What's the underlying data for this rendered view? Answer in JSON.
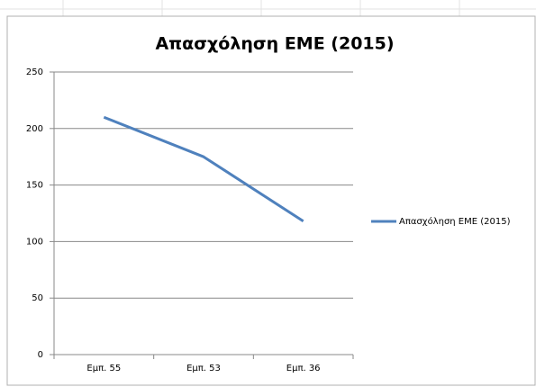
{
  "chart_data": {
    "type": "line",
    "title": "Απασχόληση ΕΜΕ (2015)",
    "categories": [
      "Εμπ. 55",
      "Εμπ. 53",
      "Εμπ. 36"
    ],
    "series": [
      {
        "name": "Απασχόληση ΕΜΕ (2015)",
        "color": "#4f81bd",
        "values": [
          210,
          175,
          118
        ]
      }
    ],
    "ylim": [
      0,
      250
    ],
    "yticks": [
      0,
      50,
      100,
      150,
      200,
      250
    ],
    "grid": true,
    "legend": "right"
  }
}
